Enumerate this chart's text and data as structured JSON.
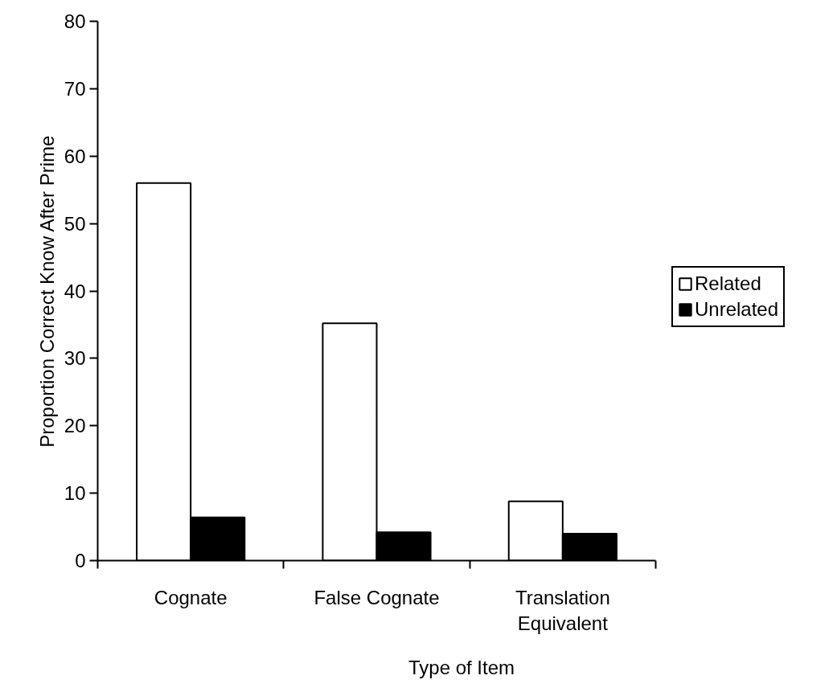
{
  "chart_data": {
    "type": "bar",
    "xlabel": "Type of Item",
    "ylabel": "Proportion Correct Know After Prime",
    "categories": [
      "Cognate",
      "False Cognate",
      "Translation Equivalent"
    ],
    "series": [
      {
        "name": "Related",
        "color": "#ffffff",
        "values": [
          56,
          35.2,
          8.8
        ]
      },
      {
        "name": "Unrelated",
        "color": "#000000",
        "values": [
          6.4,
          4.2,
          4.0
        ]
      }
    ],
    "ylim": [
      0,
      80
    ],
    "yticks": [
      0,
      10,
      20,
      30,
      40,
      50,
      60,
      70,
      80
    ],
    "grid": false,
    "legend": "right"
  }
}
